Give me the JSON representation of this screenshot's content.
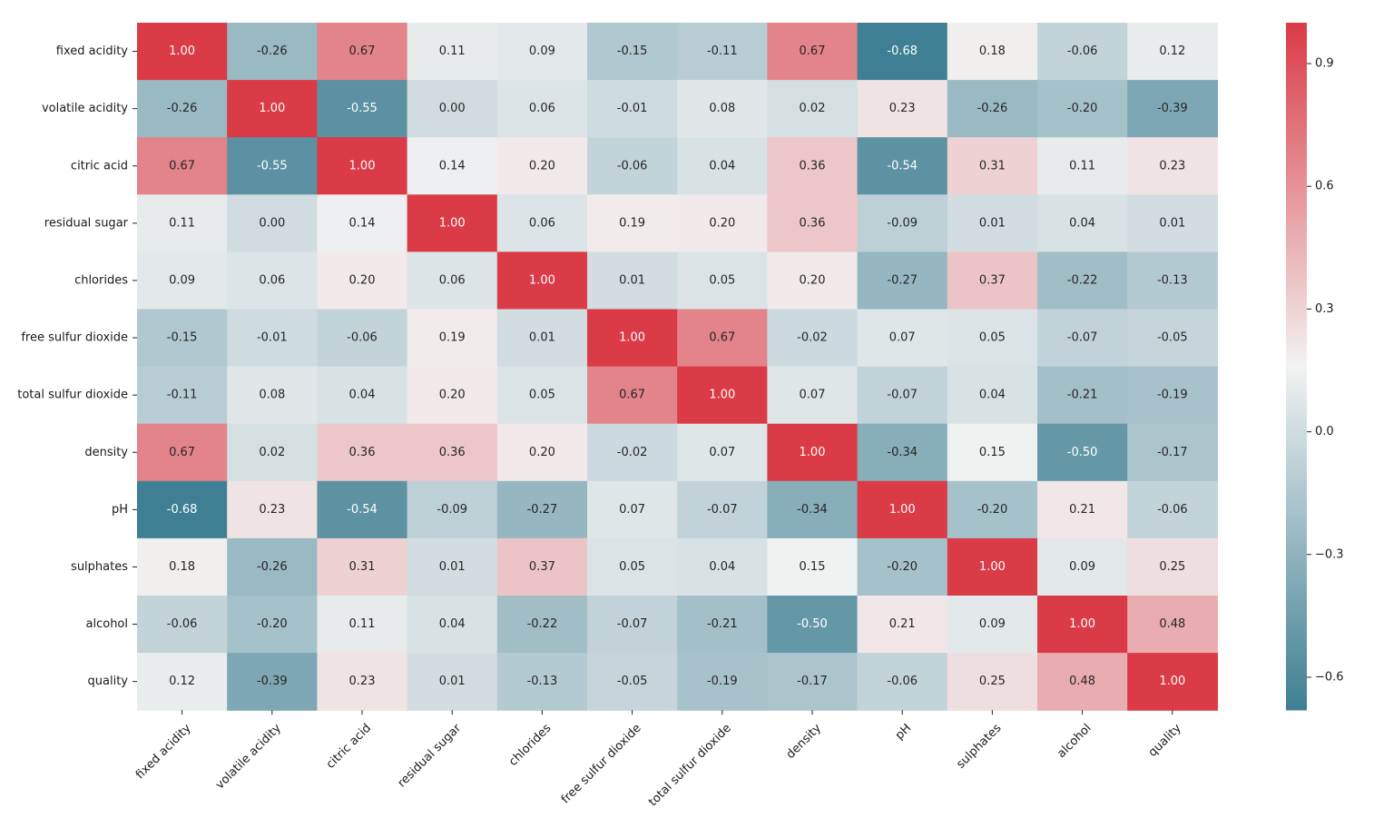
{
  "chart_data": {
    "type": "heatmap",
    "title": "",
    "xlabel": "",
    "ylabel": "",
    "categories": [
      "fixed acidity",
      "volatile acidity",
      "citric acid",
      "residual sugar",
      "chlorides",
      "free sulfur dioxide",
      "total sulfur dioxide",
      "density",
      "pH",
      "sulphates",
      "alcohol",
      "quality"
    ],
    "matrix": [
      [
        1.0,
        -0.26,
        0.67,
        0.11,
        0.09,
        -0.15,
        -0.11,
        0.67,
        -0.68,
        0.18,
        -0.06,
        0.12
      ],
      [
        -0.26,
        1.0,
        -0.55,
        0.0,
        0.06,
        -0.01,
        0.08,
        0.02,
        0.23,
        -0.26,
        -0.2,
        -0.39
      ],
      [
        0.67,
        -0.55,
        1.0,
        0.14,
        0.2,
        -0.06,
        0.04,
        0.36,
        -0.54,
        0.31,
        0.11,
        0.23
      ],
      [
        0.11,
        0.0,
        0.14,
        1.0,
        0.06,
        0.19,
        0.2,
        0.36,
        -0.09,
        0.01,
        0.04,
        0.01
      ],
      [
        0.09,
        0.06,
        0.2,
        0.06,
        1.0,
        0.01,
        0.05,
        0.2,
        -0.27,
        0.37,
        -0.22,
        -0.13
      ],
      [
        -0.15,
        -0.01,
        -0.06,
        0.19,
        0.01,
        1.0,
        0.67,
        -0.02,
        0.07,
        0.05,
        -0.07,
        -0.05
      ],
      [
        -0.11,
        0.08,
        0.04,
        0.2,
        0.05,
        0.67,
        1.0,
        0.07,
        -0.07,
        0.04,
        -0.21,
        -0.19
      ],
      [
        0.67,
        0.02,
        0.36,
        0.36,
        0.2,
        -0.02,
        0.07,
        1.0,
        -0.34,
        0.15,
        -0.5,
        -0.17
      ],
      [
        -0.68,
        0.23,
        -0.54,
        -0.09,
        -0.27,
        0.07,
        -0.07,
        -0.34,
        1.0,
        -0.2,
        0.21,
        -0.06
      ],
      [
        0.18,
        -0.26,
        0.31,
        0.01,
        0.37,
        0.05,
        0.04,
        0.15,
        -0.2,
        1.0,
        0.09,
        0.25
      ],
      [
        -0.06,
        -0.2,
        0.11,
        0.04,
        -0.22,
        -0.07,
        -0.21,
        -0.5,
        0.21,
        0.09,
        1.0,
        0.48
      ],
      [
        0.12,
        -0.39,
        0.23,
        0.01,
        -0.13,
        -0.05,
        -0.19,
        -0.17,
        -0.06,
        0.25,
        0.48,
        1.0
      ]
    ],
    "value_format": "0.00",
    "colorbar": {
      "vmin": -0.68,
      "vmax": 1.0,
      "center": 0.16,
      "ticks": [
        -0.6,
        -0.3,
        0.0,
        0.3,
        0.6,
        0.9
      ],
      "tick_labels": [
        "−0.6",
        "−0.3",
        "0.0",
        "0.3",
        "0.6",
        "0.9"
      ]
    },
    "colors": {
      "low": "#3f7f93",
      "mid": "#f2f2f2",
      "high": "#da3b46",
      "text_dark": "#262626",
      "text_light": "#ffffff"
    }
  }
}
